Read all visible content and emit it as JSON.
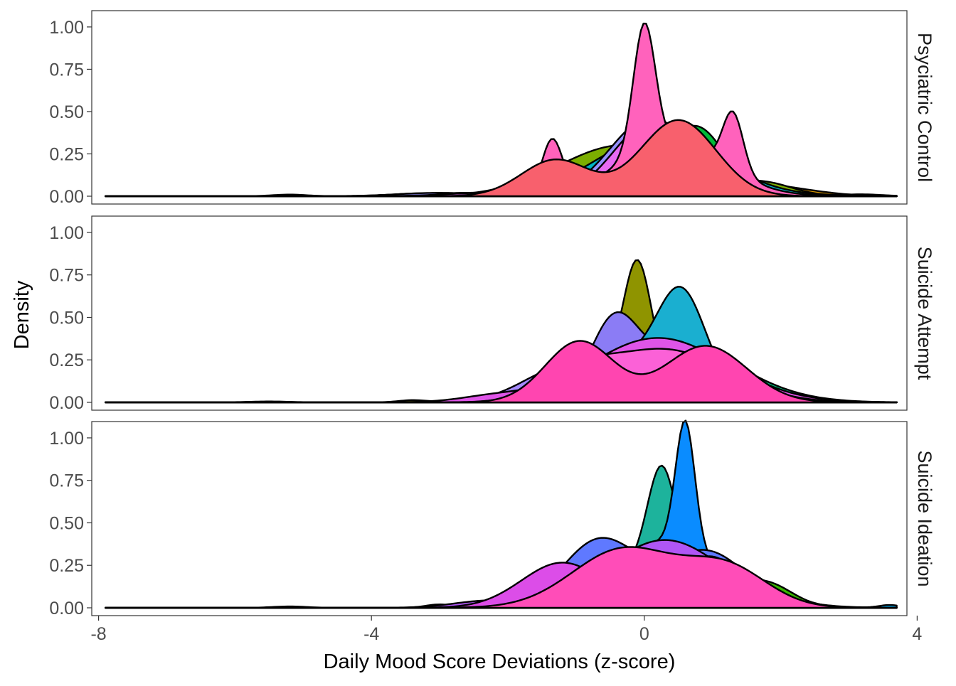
{
  "chart_data": {
    "type": "area",
    "subtype": "overlapping density curves, faceted",
    "xlabel": "Daily Mood Score Deviations (z-score)",
    "ylabel": "Density",
    "xlim": [
      -8.1,
      3.85
    ],
    "ylim": [
      0,
      1.05
    ],
    "x_ticks": [
      -8,
      -4,
      0,
      4
    ],
    "x_tick_labels": [
      "-8",
      "-4",
      "0",
      "4"
    ],
    "y_ticks": [
      0,
      0.25,
      0.5,
      0.75,
      1.0
    ],
    "y_tick_labels": [
      "0.00",
      "0.25",
      "0.50",
      "0.75",
      "1.00"
    ],
    "legend": "none",
    "grid": false,
    "facets": [
      {
        "label": "Psyciatric Control",
        "curves": [
          {
            "color": "#F8766D",
            "components": [
              {
                "mu": 0.42,
                "sd": 0.55,
                "w": 0.37
              },
              {
                "mu": -1.6,
                "sd": 0.45,
                "w": 0.06
              },
              {
                "mu": -3.2,
                "sd": 0.5,
                "w": 0.02
              }
            ]
          },
          {
            "color": "#D39200",
            "components": [
              {
                "mu": 0.25,
                "sd": 0.8,
                "w": 0.52
              },
              {
                "mu": 2.0,
                "sd": 0.6,
                "w": 0.06
              },
              {
                "mu": -2.5,
                "sd": 0.6,
                "w": 0.03
              }
            ]
          },
          {
            "color": "#5BA300",
            "components": [
              {
                "mu": 0.08,
                "sd": 0.12,
                "w": 0.16
              },
              {
                "mu": 0.3,
                "sd": 0.7,
                "w": 0.42
              },
              {
                "mu": 1.6,
                "sd": 0.35,
                "w": 0.05
              },
              {
                "mu": -2.6,
                "sd": 0.4,
                "w": 0.02
              }
            ]
          },
          {
            "color": "#7CAE00",
            "components": [
              {
                "mu": -0.3,
                "sd": 0.95,
                "w": 0.72
              },
              {
                "mu": 1.8,
                "sd": 0.4,
                "w": 0.06
              },
              {
                "mu": 3.2,
                "sd": 0.3,
                "w": 0.008
              }
            ]
          },
          {
            "color": "#00BA38",
            "components": [
              {
                "mu": 0.8,
                "sd": 0.4,
                "w": 0.32
              },
              {
                "mu": -0.1,
                "sd": 0.8,
                "w": 0.35
              }
            ]
          },
          {
            "color": "#00BF7D",
            "components": [
              {
                "mu": 0.35,
                "sd": 0.75,
                "w": 0.62
              },
              {
                "mu": -3.3,
                "sd": 0.35,
                "w": 0.015
              }
            ]
          },
          {
            "color": "#00B4C4",
            "components": [
              {
                "mu": 0.2,
                "sd": 0.9,
                "w": 0.8
              },
              {
                "mu": -5.2,
                "sd": 0.25,
                "w": 0.006
              }
            ]
          },
          {
            "color": "#9590FF",
            "components": [
              {
                "mu": 0.1,
                "sd": 0.6,
                "w": 0.7
              },
              {
                "mu": -3.0,
                "sd": 0.6,
                "w": 0.03
              }
            ]
          },
          {
            "color": "#E76BF3",
            "components": [
              {
                "mu": 0.1,
                "sd": 0.55,
                "w": 0.6
              },
              {
                "mu": -2.3,
                "sd": 0.6,
                "w": 0.03
              }
            ]
          },
          {
            "color": "#FF62BC",
            "components": [
              {
                "mu": 0.0,
                "sd": 0.16,
                "w": 0.3
              },
              {
                "mu": -1.35,
                "sd": 0.15,
                "w": 0.12
              },
              {
                "mu": 1.3,
                "sd": 0.15,
                "w": 0.13
              },
              {
                "mu": 0.4,
                "sd": 0.75,
                "w": 0.6
              }
            ]
          },
          {
            "color": "#F8606D",
            "components": [
              {
                "mu": -1.3,
                "sd": 0.5,
                "w": 0.27
              },
              {
                "mu": 0.5,
                "sd": 0.55,
                "w": 0.62
              }
            ]
          }
        ]
      },
      {
        "label": "Suicide Attempt",
        "curves": [
          {
            "color": "#00BF7D",
            "components": [
              {
                "mu": 0.3,
                "sd": 1.0,
                "w": 0.95
              },
              {
                "mu": -1.8,
                "sd": 0.4,
                "w": 0.03
              }
            ]
          },
          {
            "color": "#8F9400",
            "components": [
              {
                "mu": -0.1,
                "sd": 0.2,
                "w": 0.32
              },
              {
                "mu": -0.5,
                "sd": 0.9,
                "w": 0.5
              },
              {
                "mu": -3.4,
                "sd": 0.2,
                "w": 0.006
              }
            ]
          },
          {
            "color": "#8B7CF5",
            "components": [
              {
                "mu": -0.45,
                "sd": 0.35,
                "w": 0.37
              },
              {
                "mu": 0.6,
                "sd": 0.7,
                "w": 0.55
              }
            ]
          },
          {
            "color": "#1AAFD0",
            "components": [
              {
                "mu": 0.55,
                "sd": 0.35,
                "w": 0.45
              },
              {
                "mu": -0.3,
                "sd": 0.9,
                "w": 0.58
              }
            ]
          },
          {
            "color": "#A58AFF",
            "components": [
              {
                "mu": 0.5,
                "sd": 0.8,
                "w": 0.68
              },
              {
                "mu": -1.2,
                "sd": 0.6,
                "w": 0.28
              }
            ]
          },
          {
            "color": "#DF55E8",
            "components": [
              {
                "mu": 0.2,
                "sd": 1.0,
                "w": 0.95
              },
              {
                "mu": -2.2,
                "sd": 0.5,
                "w": 0.04
              },
              {
                "mu": -5.5,
                "sd": 0.3,
                "w": 0.004
              }
            ]
          },
          {
            "color": "#FB61D7",
            "components": [
              {
                "mu": 0.3,
                "sd": 0.9,
                "w": 0.7
              },
              {
                "mu": -1.0,
                "sd": 0.5,
                "w": 0.16
              }
            ]
          },
          {
            "color": "#FF45B0",
            "components": [
              {
                "mu": -0.95,
                "sd": 0.5,
                "w": 0.45
              },
              {
                "mu": 0.9,
                "sd": 0.6,
                "w": 0.5
              }
            ]
          }
        ]
      },
      {
        "label": "Suicide Ideation",
        "curves": [
          {
            "color": "#39B600",
            "components": [
              {
                "mu": 0.3,
                "sd": 0.9,
                "w": 0.85
              },
              {
                "mu": 1.9,
                "sd": 0.3,
                "w": 0.05
              }
            ]
          },
          {
            "color": "#00B0F6",
            "components": [
              {
                "mu": 0.4,
                "sd": 0.9,
                "w": 0.85
              },
              {
                "mu": 3.6,
                "sd": 0.15,
                "w": 0.006
              },
              {
                "mu": -5.2,
                "sd": 0.25,
                "w": 0.005
              }
            ]
          },
          {
            "color": "#1DB39C",
            "components": [
              {
                "mu": 0.25,
                "sd": 0.2,
                "w": 0.27
              },
              {
                "mu": 0.3,
                "sd": 0.8,
                "w": 0.6
              },
              {
                "mu": -3.0,
                "sd": 0.2,
                "w": 0.01
              }
            ]
          },
          {
            "color": "#0A8CFF",
            "components": [
              {
                "mu": 0.6,
                "sd": 0.14,
                "w": 0.26
              },
              {
                "mu": 0.3,
                "sd": 0.8,
                "w": 0.78
              }
            ]
          },
          {
            "color": "#5F79FF",
            "components": [
              {
                "mu": -0.65,
                "sd": 0.55,
                "w": 0.55
              },
              {
                "mu": 0.9,
                "sd": 0.6,
                "w": 0.5
              }
            ]
          },
          {
            "color": "#B056F5",
            "components": [
              {
                "mu": 0.3,
                "sd": 0.85,
                "w": 0.85
              },
              {
                "mu": -2.3,
                "sd": 0.5,
                "w": 0.05
              }
            ]
          },
          {
            "color": "#DC4DE8",
            "components": [
              {
                "mu": 0.95,
                "sd": 0.5,
                "w": 0.38
              },
              {
                "mu": -1.2,
                "sd": 0.6,
                "w": 0.4
              }
            ]
          },
          {
            "color": "#FF4DB8",
            "components": [
              {
                "mu": -0.3,
                "sd": 0.75,
                "w": 0.65
              },
              {
                "mu": 1.2,
                "sd": 0.6,
                "w": 0.35
              }
            ]
          }
        ]
      }
    ]
  }
}
